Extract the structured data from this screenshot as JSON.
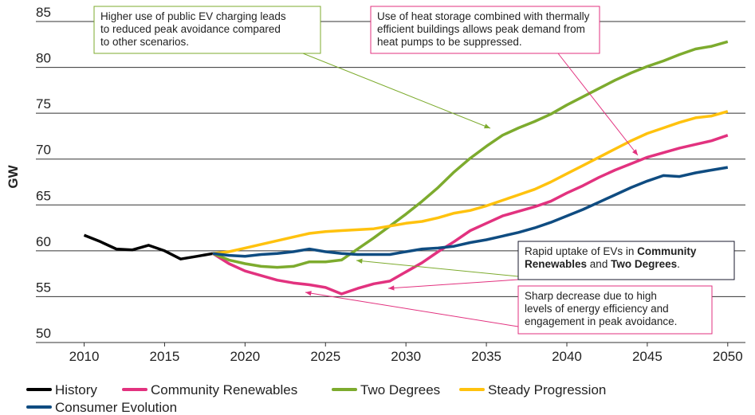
{
  "chart_data": {
    "type": "line",
    "y_label": "GW",
    "xlim": [
      2007,
      2051.1
    ],
    "ylim": [
      50,
      85
    ],
    "xticks": [
      2010,
      2015,
      2020,
      2025,
      2030,
      2035,
      2040,
      2045,
      2050
    ],
    "yticks": [
      50,
      55,
      60,
      65,
      70,
      75,
      80,
      85
    ],
    "grid": true,
    "legend": "bottom",
    "series": [
      {
        "name": "History",
        "color": "#000000",
        "x": [
          2010,
          2011,
          2012,
          2013,
          2014,
          2015,
          2016,
          2017,
          2018
        ],
        "values": [
          61.7,
          61.0,
          60.2,
          60.1,
          60.6,
          60.0,
          59.1,
          59.4,
          59.7
        ]
      },
      {
        "name": "Community Renewables",
        "color": "#e2327f",
        "x": [
          2018,
          2019,
          2020,
          2021,
          2022,
          2023,
          2024,
          2025,
          2026,
          2027,
          2028,
          2029,
          2030,
          2031,
          2032,
          2033,
          2034,
          2035,
          2036,
          2037,
          2038,
          2039,
          2040,
          2041,
          2042,
          2043,
          2044,
          2045,
          2046,
          2047,
          2048,
          2049,
          2050
        ],
        "values": [
          59.7,
          58.6,
          57.8,
          57.3,
          56.8,
          56.5,
          56.3,
          56.0,
          55.3,
          55.9,
          56.4,
          56.7,
          57.7,
          58.7,
          59.9,
          61.0,
          62.2,
          63.0,
          63.8,
          64.3,
          64.8,
          65.4,
          66.3,
          67.1,
          68.0,
          68.8,
          69.5,
          70.2,
          70.7,
          71.2,
          71.6,
          72.0,
          72.6
        ]
      },
      {
        "name": "Two Degrees",
        "color": "#7dab2e",
        "x": [
          2018,
          2019,
          2020,
          2021,
          2022,
          2023,
          2024,
          2025,
          2026,
          2027,
          2028,
          2029,
          2030,
          2031,
          2032,
          2033,
          2034,
          2035,
          2036,
          2037,
          2038,
          2039,
          2040,
          2041,
          2042,
          2043,
          2044,
          2045,
          2046,
          2047,
          2048,
          2049,
          2050
        ],
        "values": [
          59.7,
          59.0,
          58.6,
          58.3,
          58.2,
          58.3,
          58.8,
          58.8,
          59.0,
          60.2,
          61.4,
          62.7,
          64.0,
          65.4,
          66.9,
          68.6,
          70.1,
          71.4,
          72.6,
          73.4,
          74.1,
          74.9,
          75.9,
          76.8,
          77.7,
          78.6,
          79.4,
          80.1,
          80.7,
          81.4,
          82.0,
          82.3,
          82.8
        ]
      },
      {
        "name": "Steady Progression",
        "color": "#ffc20e",
        "x": [
          2018,
          2019,
          2020,
          2021,
          2022,
          2023,
          2024,
          2025,
          2026,
          2027,
          2028,
          2029,
          2030,
          2031,
          2032,
          2033,
          2034,
          2035,
          2036,
          2037,
          2038,
          2039,
          2040,
          2041,
          2042,
          2043,
          2044,
          2045,
          2046,
          2047,
          2048,
          2049,
          2050
        ],
        "values": [
          59.7,
          59.9,
          60.3,
          60.7,
          61.1,
          61.5,
          61.9,
          62.1,
          62.2,
          62.3,
          62.4,
          62.7,
          63.0,
          63.2,
          63.6,
          64.1,
          64.4,
          64.9,
          65.5,
          66.1,
          66.7,
          67.5,
          68.4,
          69.3,
          70.2,
          71.1,
          72.0,
          72.8,
          73.4,
          74.0,
          74.5,
          74.7,
          75.2
        ]
      },
      {
        "name": "Consumer Evolution",
        "color": "#0f4c81",
        "x": [
          2018,
          2019,
          2020,
          2021,
          2022,
          2023,
          2024,
          2025,
          2026,
          2027,
          2028,
          2029,
          2030,
          2031,
          2032,
          2033,
          2034,
          2035,
          2036,
          2037,
          2038,
          2039,
          2040,
          2041,
          2042,
          2043,
          2044,
          2045,
          2046,
          2047,
          2048,
          2049,
          2050
        ],
        "values": [
          59.7,
          59.5,
          59.4,
          59.6,
          59.7,
          59.9,
          60.2,
          59.9,
          59.7,
          59.6,
          59.6,
          59.6,
          59.9,
          60.2,
          60.3,
          60.5,
          60.9,
          61.2,
          61.6,
          62.0,
          62.5,
          63.1,
          63.8,
          64.5,
          65.3,
          66.1,
          66.9,
          67.6,
          68.2,
          68.1,
          68.5,
          68.8,
          69.1
        ]
      }
    ],
    "annotations": [
      {
        "color": "#7dab2e",
        "lines": [
          [
            {
              "text": "Higher use of public EV charging leads"
            }
          ],
          [
            {
              "text": "to reduced peak avoidance compared"
            }
          ],
          [
            {
              "text": "to other scenarios."
            }
          ]
        ]
      },
      {
        "color": "#e2327f",
        "lines": [
          [
            {
              "text": "Use of heat storage combined with thermally"
            }
          ],
          [
            {
              "text": "efficient buildings allows peak demand from"
            }
          ],
          [
            {
              "text": "heat pumps to be suppressed."
            }
          ]
        ]
      },
      {
        "color": "#1a1a2e",
        "lines": [
          [
            {
              "text": "Rapid uptake of EVs in "
            },
            {
              "text": "Community",
              "bold": true
            }
          ],
          [
            {
              "text": "Renewables",
              "bold": true
            },
            {
              "text": " and "
            },
            {
              "text": "Two Degrees",
              "bold": true
            },
            {
              "text": "."
            }
          ]
        ]
      },
      {
        "color": "#e2327f",
        "lines": [
          [
            {
              "text": "Sharp decrease due to high"
            }
          ],
          [
            {
              "text": "levels of energy efficiency and"
            }
          ],
          [
            {
              "text": "engagement in peak avoidance."
            }
          ]
        ]
      }
    ]
  }
}
